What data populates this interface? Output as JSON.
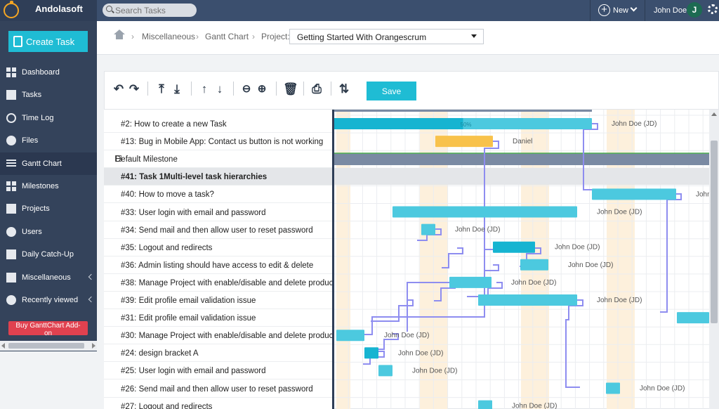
{
  "brand": "Andolasoft",
  "search": {
    "placeholder": "Search Tasks"
  },
  "top": {
    "new_label": "New",
    "user_name": "John Doe",
    "avatar_initial": "J"
  },
  "sidebar": {
    "create_task": "Create Task",
    "items": [
      {
        "label": "Dashboard",
        "icon": "dashboard-icon"
      },
      {
        "label": "Tasks",
        "icon": "tasks-icon"
      },
      {
        "label": "Time Log",
        "icon": "clock-icon"
      },
      {
        "label": "Files",
        "icon": "files-icon"
      },
      {
        "label": "Gantt Chart",
        "icon": "gantt-icon",
        "active": true
      },
      {
        "label": "Milestones",
        "icon": "milestones-icon"
      },
      {
        "label": "Projects",
        "icon": "projects-icon"
      },
      {
        "label": "Users",
        "icon": "users-icon"
      },
      {
        "label": "Daily Catch-Up",
        "icon": "catchup-icon"
      },
      {
        "label": "Miscellaneous",
        "icon": "layers-icon"
      },
      {
        "label": "Recently viewed",
        "icon": "eye-icon"
      }
    ],
    "addon": "Buy GanttChart Add-on"
  },
  "breadcrumb": {
    "misc": "Miscellaneous",
    "gantt": "Gantt Chart",
    "project_label": "Project:",
    "project_value": "Getting Started With Orangescrum"
  },
  "toolbar": {
    "save": "Save"
  },
  "tasks": [
    {
      "text": "#2: How to create a new Task"
    },
    {
      "text": "#13: Bug in Mobile App: Contact us button is not working"
    },
    {
      "text": "Default Milestone",
      "milestone": true
    },
    {
      "text": "#41: Task 1Multi-level task hierarchies",
      "selected": true
    },
    {
      "text": "#40: How to move  a task?"
    },
    {
      "text": "#33: User login with email and password"
    },
    {
      "text": "#34: Send mail and then allow user to reset password"
    },
    {
      "text": "#35: Logout and redirects"
    },
    {
      "text": "#36: Admin listing should have access to edit & delete"
    },
    {
      "text": "#38: Manage Project with enable/disable and delete product"
    },
    {
      "text": "#39: Edit profile email validation issue"
    },
    {
      "text": "#31: Edit profile email validation issue"
    },
    {
      "text": "#30: Manage Project with enable/disable and delete product"
    },
    {
      "text": "#24: design bracket A"
    },
    {
      "text": "#25: User login with email and password"
    },
    {
      "text": "#26: Send mail and then allow user to reset password"
    },
    {
      "text": "#27: Logout and redirects"
    }
  ],
  "bars": [
    {
      "label": "John Doe (JD)",
      "progress": "50%"
    },
    {
      "label": "Daniel"
    },
    null,
    null,
    {
      "label": "John"
    },
    {
      "label": "John Doe (JD)"
    },
    {
      "label": "John Doe (JD)"
    },
    {
      "label": "John Doe (JD)"
    },
    {
      "label": "John Doe (JD)"
    },
    {
      "label": "John Doe (JD)"
    },
    {
      "label": "John Doe (JD)"
    },
    {
      "label": ""
    },
    {
      "label": "John Doe (JD)"
    },
    {
      "label": "John Doe (JD)"
    },
    {
      "label": "John Doe (JD)"
    },
    {
      "label": "John Doe (JD)"
    },
    {
      "label": "John Doe (JD)"
    }
  ]
}
